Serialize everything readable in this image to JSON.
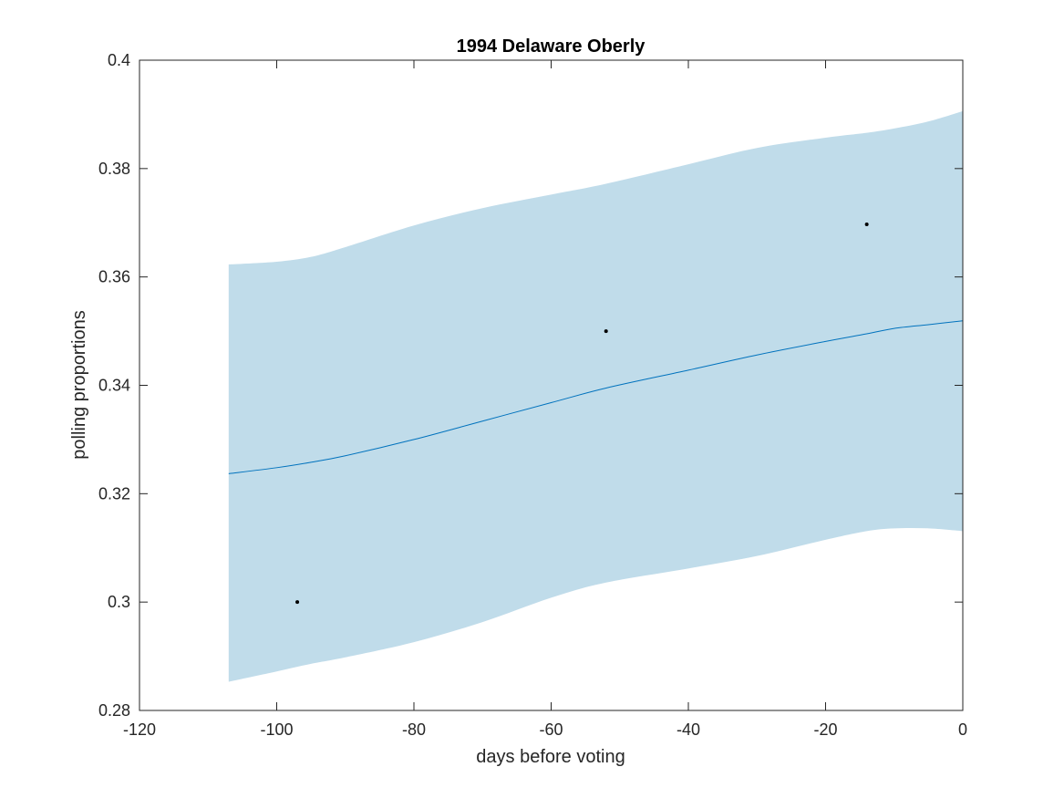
{
  "chart_data": {
    "type": "line",
    "title": "1994 Delaware Oberly",
    "xlabel": "days before voting",
    "ylabel": "polling proportions",
    "xlim": [
      -120,
      0
    ],
    "ylim": [
      0.28,
      0.4
    ],
    "xticks": [
      -120,
      -100,
      -80,
      -60,
      -40,
      -20,
      0
    ],
    "yticks": [
      0.28,
      0.3,
      0.32,
      0.34,
      0.36,
      0.38,
      0.4
    ],
    "xtick_labels": [
      "-120",
      "-100",
      "-80",
      "-60",
      "-40",
      "-20",
      "0"
    ],
    "ytick_labels": [
      "0.28",
      "0.3",
      "0.32",
      "0.34",
      "0.36",
      "0.38",
      "0.4"
    ],
    "grid": false,
    "colors": {
      "band": "#c0dcea",
      "line": "#0072bd",
      "points": "#000000",
      "axes": "#262626"
    },
    "band": {
      "x": [
        -107,
        -100,
        -95,
        -90,
        -80,
        -70,
        -60,
        -52,
        -40,
        -30,
        -20,
        -14,
        -10,
        -5,
        0
      ],
      "upper": [
        0.3623,
        0.3628,
        0.3637,
        0.3655,
        0.3695,
        0.3727,
        0.3752,
        0.3772,
        0.3808,
        0.3838,
        0.3857,
        0.3866,
        0.3874,
        0.3887,
        0.3906
      ],
      "lower": [
        0.2853,
        0.2872,
        0.2886,
        0.2898,
        0.2926,
        0.2963,
        0.3008,
        0.3036,
        0.3062,
        0.3085,
        0.3115,
        0.3131,
        0.3136,
        0.3136,
        0.3131
      ]
    },
    "series": [
      {
        "x": [
          -107,
          -100,
          -95,
          -90,
          -80,
          -70,
          -60,
          -52,
          -40,
          -30,
          -20,
          -14,
          -10,
          -5,
          0
        ],
        "values": [
          0.3237,
          0.3248,
          0.3258,
          0.327,
          0.33,
          0.3334,
          0.3368,
          0.3395,
          0.3428,
          0.3456,
          0.3481,
          0.3495,
          0.3505,
          0.3512,
          0.3519
        ]
      }
    ],
    "points": {
      "x": [
        -97,
        -52,
        -14
      ],
      "y": [
        0.3,
        0.35,
        0.3697
      ]
    }
  }
}
